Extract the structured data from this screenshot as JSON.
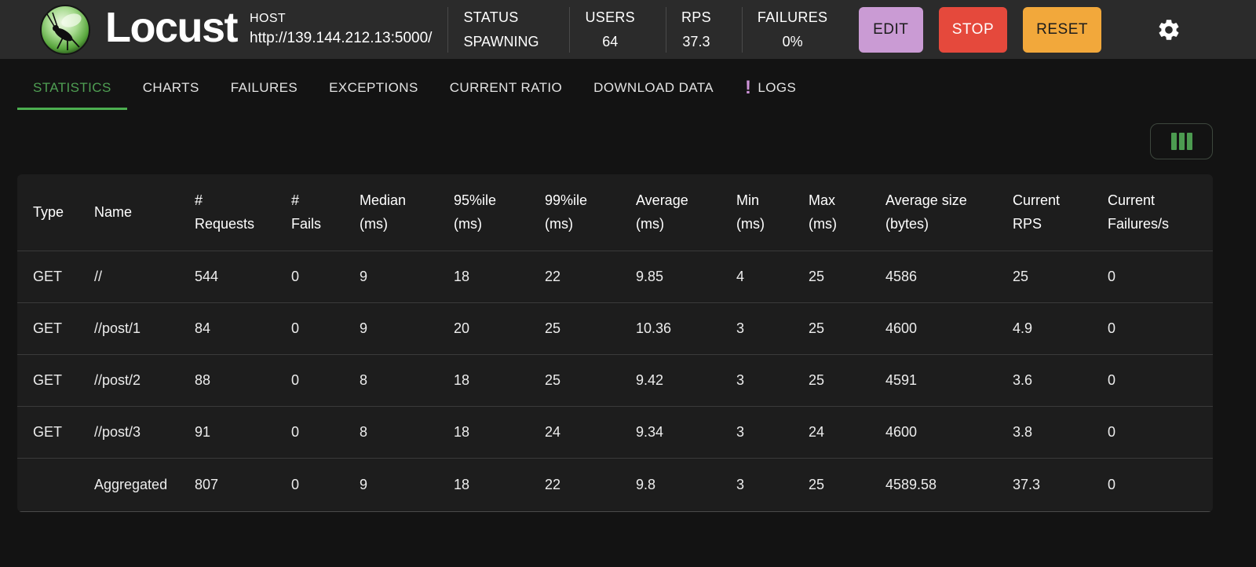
{
  "header": {
    "app_name": "Locust",
    "host": {
      "label": "HOST",
      "url": "http://139.144.212.13:5000/"
    },
    "stats": {
      "status": {
        "label": "STATUS",
        "value": "SPAWNING"
      },
      "users": {
        "label": "USERS",
        "value": "64"
      },
      "rps": {
        "label": "RPS",
        "value": "37.3"
      },
      "failures": {
        "label": "FAILURES",
        "value": "0%"
      }
    },
    "buttons": {
      "edit": "EDIT",
      "stop": "STOP",
      "reset": "RESET"
    }
  },
  "tabs": [
    {
      "label": "STATISTICS",
      "active": true
    },
    {
      "label": "CHARTS",
      "active": false
    },
    {
      "label": "FAILURES",
      "active": false
    },
    {
      "label": "EXCEPTIONS",
      "active": false
    },
    {
      "label": "CURRENT RATIO",
      "active": false
    },
    {
      "label": "DOWNLOAD DATA",
      "active": false
    },
    {
      "label": "LOGS",
      "active": false,
      "badge": "!"
    }
  ],
  "table": {
    "columns": [
      {
        "lines": [
          "Type"
        ]
      },
      {
        "lines": [
          "Name"
        ]
      },
      {
        "lines": [
          "#",
          "Requests"
        ]
      },
      {
        "lines": [
          "#",
          "Fails"
        ]
      },
      {
        "lines": [
          "Median",
          "(ms)"
        ]
      },
      {
        "lines": [
          "95%ile",
          "(ms)"
        ]
      },
      {
        "lines": [
          "99%ile",
          "(ms)"
        ]
      },
      {
        "lines": [
          "Average",
          "(ms)"
        ]
      },
      {
        "lines": [
          "Min",
          "(ms)"
        ]
      },
      {
        "lines": [
          "Max",
          "(ms)"
        ]
      },
      {
        "lines": [
          "Average size",
          "(bytes)"
        ]
      },
      {
        "lines": [
          "Current",
          "RPS"
        ]
      },
      {
        "lines": [
          "Current",
          "Failures/s"
        ]
      }
    ],
    "rows": [
      [
        "GET",
        "//",
        "544",
        "0",
        "9",
        "18",
        "22",
        "9.85",
        "4",
        "25",
        "4586",
        "25",
        "0"
      ],
      [
        "GET",
        "//post/1",
        "84",
        "0",
        "9",
        "20",
        "25",
        "10.36",
        "3",
        "25",
        "4600",
        "4.9",
        "0"
      ],
      [
        "GET",
        "//post/2",
        "88",
        "0",
        "8",
        "18",
        "25",
        "9.42",
        "3",
        "25",
        "4591",
        "3.6",
        "0"
      ],
      [
        "GET",
        "//post/3",
        "91",
        "0",
        "8",
        "18",
        "24",
        "9.34",
        "3",
        "24",
        "4600",
        "3.8",
        "0"
      ],
      [
        "",
        "Aggregated",
        "807",
        "0",
        "9",
        "18",
        "22",
        "9.8",
        "3",
        "25",
        "4589.58",
        "37.3",
        "0"
      ]
    ]
  },
  "colors": {
    "accent_green": "#4caf50",
    "edit_button": "#ca9bd4",
    "stop_button": "#e5493c",
    "reset_button": "#f2a83b",
    "logs_badge": "#ce93d8",
    "columns_icon": "#4c9b50",
    "header_bg": "#2b2b2b",
    "page_bg": "#131313",
    "card_bg": "#1d1d1d"
  }
}
